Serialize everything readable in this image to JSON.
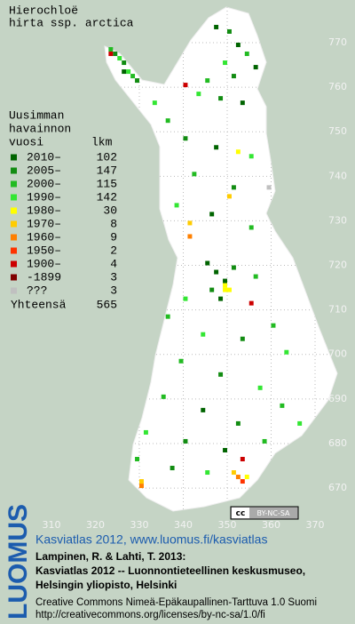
{
  "title": [
    "Hierochloë",
    "hirta ssp. arctica"
  ],
  "legend": {
    "heading": [
      "Uusimman",
      "havainnon",
      "vuosi"
    ],
    "count_heading": "lkm",
    "entries": [
      {
        "label": "2010–",
        "count": 102,
        "color": "#006400"
      },
      {
        "label": "2005–",
        "count": 147,
        "color": "#128c12"
      },
      {
        "label": "2000–",
        "count": 115,
        "color": "#22bb22"
      },
      {
        "label": "1990–",
        "count": 142,
        "color": "#33e633"
      },
      {
        "label": "1980–",
        "count": 30,
        "color": "#ffff00"
      },
      {
        "label": "1970–",
        "count": 8,
        "color": "#ffcc00"
      },
      {
        "label": "1960–",
        "count": 9,
        "color": "#ff8000"
      },
      {
        "label": "1950–",
        "count": 2,
        "color": "#ff3300"
      },
      {
        "label": "1900–",
        "count": 4,
        "color": "#cc0000"
      },
      {
        "label": "-1899",
        "count": 3,
        "color": "#800000"
      },
      {
        "label": "???",
        "count": 3,
        "color": "#c0c0c0"
      }
    ],
    "total_label": "Yhteensä",
    "total": 565
  },
  "map": {
    "xlim": [
      300,
      375
    ],
    "ylim": [
      667,
      779
    ],
    "xticks": [
      310,
      320,
      330,
      340,
      350,
      360,
      370
    ],
    "yticks": [
      670,
      680,
      690,
      700,
      710,
      720,
      730,
      740,
      750,
      760,
      770
    ],
    "grid": true,
    "squares": [
      [
        323,
        768,
        2
      ],
      [
        324,
        767,
        1
      ],
      [
        325,
        766,
        3
      ],
      [
        326,
        765,
        1
      ],
      [
        327,
        763,
        3
      ],
      [
        328,
        762,
        2
      ],
      [
        329,
        761,
        1
      ],
      [
        326,
        763,
        0
      ],
      [
        323,
        767,
        8
      ],
      [
        347,
        773,
        0
      ],
      [
        350,
        772,
        1
      ],
      [
        352,
        769,
        0
      ],
      [
        354,
        767,
        2
      ],
      [
        349,
        765,
        3
      ],
      [
        356,
        764,
        0
      ],
      [
        351,
        762,
        1
      ],
      [
        345,
        761,
        2
      ],
      [
        343,
        758,
        3
      ],
      [
        348,
        757,
        1
      ],
      [
        353,
        756,
        0
      ],
      [
        340,
        760,
        8
      ],
      [
        333,
        756,
        3
      ],
      [
        336,
        752,
        2
      ],
      [
        340,
        748,
        1
      ],
      [
        347,
        746,
        0
      ],
      [
        355,
        744,
        3
      ],
      [
        342,
        740,
        2
      ],
      [
        351,
        737,
        1
      ],
      [
        338,
        733,
        3
      ],
      [
        346,
        731,
        0
      ],
      [
        355,
        728,
        2
      ],
      [
        352,
        745,
        4
      ],
      [
        350,
        735,
        5
      ],
      [
        359,
        737,
        10
      ],
      [
        341,
        726,
        6
      ],
      [
        341,
        729,
        5
      ],
      [
        345,
        720,
        0
      ],
      [
        347,
        718,
        0
      ],
      [
        349,
        716,
        0
      ],
      [
        346,
        714,
        1
      ],
      [
        348,
        712,
        0
      ],
      [
        351,
        719,
        1
      ],
      [
        349,
        715,
        4
      ],
      [
        350,
        714,
        4
      ],
      [
        349,
        714,
        4
      ],
      [
        355,
        711,
        8
      ],
      [
        356,
        717,
        2
      ],
      [
        340,
        712,
        3
      ],
      [
        336,
        708,
        2
      ],
      [
        344,
        704,
        3
      ],
      [
        353,
        703,
        1
      ],
      [
        360,
        706,
        2
      ],
      [
        363,
        700,
        3
      ],
      [
        339,
        698,
        2
      ],
      [
        348,
        695,
        1
      ],
      [
        357,
        692,
        3
      ],
      [
        335,
        690,
        2
      ],
      [
        344,
        687,
        0
      ],
      [
        352,
        684,
        1
      ],
      [
        362,
        688,
        2
      ],
      [
        331,
        682,
        3
      ],
      [
        340,
        680,
        1
      ],
      [
        349,
        678,
        0
      ],
      [
        358,
        680,
        2
      ],
      [
        366,
        684,
        3
      ],
      [
        329,
        676,
        2
      ],
      [
        337,
        674,
        1
      ],
      [
        345,
        673,
        3
      ],
      [
        352,
        672,
        6
      ],
      [
        353,
        671,
        7
      ],
      [
        351,
        673,
        5
      ],
      [
        354,
        672,
        4
      ],
      [
        330,
        670,
        6
      ],
      [
        330,
        671,
        5
      ],
      [
        353,
        676,
        8
      ]
    ]
  },
  "badge": [
    "cc",
    "BY-NC-SA"
  ],
  "footer": {
    "brand": "LUOMUS",
    "link": "Kasviatlas 2012, www.luomus.fi/kasviatlas",
    "citation": [
      "Lampinen, R. & Lahti, T. 2013:",
      "Kasviatlas 2012 -- Luonnontieteellinen keskusmuseo,",
      "Helsingin yliopisto, Helsinki"
    ],
    "license": [
      "Creative Commons Nimeä-Epäkaupallinen-Tarttuva 1.0 Suomi",
      "http://creativecommons.org/licenses/by-nc-sa/1.0/fi"
    ]
  }
}
